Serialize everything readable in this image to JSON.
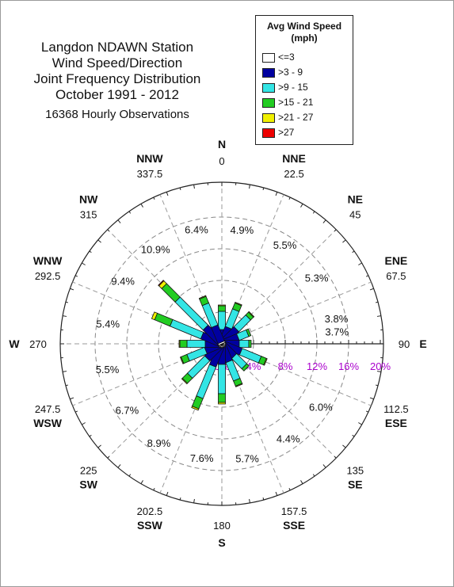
{
  "title": {
    "lines": [
      "Langdon NDAWN Station",
      "Wind Speed/Direction",
      "Joint Frequency Distribution",
      "October 1991 - 2012"
    ],
    "observations": "16368 Hourly Observations"
  },
  "legend": {
    "title": "Avg Wind Speed (mph)",
    "items": [
      {
        "label": "<=3",
        "color": "#ffffff"
      },
      {
        "label": ">3 - 9",
        "color": "#0000a0"
      },
      {
        "label": ">9 - 15",
        "color": "#33e5e5"
      },
      {
        "label": ">15 - 21",
        "color": "#22cc22"
      },
      {
        "label": ">21 - 27",
        "color": "#f0f000"
      },
      {
        "label": ">27",
        "color": "#ee0000"
      }
    ]
  },
  "chart_data": {
    "type": "polar-bar",
    "title": "Langdon NDAWN Station Wind Speed/Direction Joint Frequency Distribution October 1991 - 2012",
    "radial_axis": {
      "ticks": [
        "0%",
        "4%",
        "8%",
        "12%",
        "16%",
        "20%"
      ],
      "max": 20,
      "tick_color": "#aa00cc"
    },
    "directions": [
      {
        "name": "N",
        "angle": "0",
        "label_pct": "4.9%",
        "values": [
          0.2,
          1.6,
          2.3,
          0.7,
          0.1,
          0
        ]
      },
      {
        "name": "NNE",
        "angle": "22.5",
        "label_pct": "5.5%",
        "values": [
          0.2,
          2.0,
          2.4,
          0.8,
          0.1,
          0
        ]
      },
      {
        "name": "NE",
        "angle": "45",
        "label_pct": "5.3%",
        "values": [
          0.2,
          2.4,
          2.1,
          0.5,
          0.1,
          0
        ]
      },
      {
        "name": "ENE",
        "angle": "67.5",
        "label_pct": "3.8%",
        "values": [
          0.2,
          2.0,
          1.3,
          0.3,
          0,
          0
        ]
      },
      {
        "name": "E",
        "angle": "90",
        "label_pct": "3.7%",
        "values": [
          0.2,
          2.0,
          1.2,
          0.3,
          0,
          0
        ]
      },
      {
        "name": "ESE",
        "angle": "112.5",
        "label_pct": "6.0%",
        "values": [
          0.2,
          2.4,
          2.6,
          0.7,
          0.1,
          0
        ]
      },
      {
        "name": "SE",
        "angle": "135",
        "label_pct": "4.4%",
        "values": [
          0.2,
          2.0,
          1.8,
          0.4,
          0,
          0
        ]
      },
      {
        "name": "SSE",
        "angle": "157.5",
        "label_pct": "5.7%",
        "values": [
          0.2,
          2.2,
          2.5,
          0.7,
          0.1,
          0
        ]
      },
      {
        "name": "S",
        "angle": "180",
        "label_pct": "7.6%",
        "values": [
          0.2,
          2.4,
          3.7,
          1.1,
          0.2,
          0
        ]
      },
      {
        "name": "SSW",
        "angle": "202.5",
        "label_pct": "8.9%",
        "values": [
          0.2,
          2.8,
          4.3,
          1.4,
          0.2,
          0
        ]
      },
      {
        "name": "SW",
        "angle": "225",
        "label_pct": "6.7%",
        "values": [
          0.2,
          2.4,
          3.1,
          0.9,
          0.1,
          0
        ]
      },
      {
        "name": "WSW",
        "angle": "247.5",
        "label_pct": "5.5%",
        "values": [
          0.2,
          2.0,
          2.4,
          0.8,
          0.1,
          0
        ]
      },
      {
        "name": "W",
        "angle": "270",
        "label_pct": "5.4%",
        "values": [
          0.2,
          1.9,
          2.3,
          0.9,
          0.1,
          0
        ]
      },
      {
        "name": "WNW",
        "angle": "292.5",
        "label_pct": "9.4%",
        "values": [
          0.2,
          2.5,
          4.2,
          2.1,
          0.4,
          0
        ]
      },
      {
        "name": "NW",
        "angle": "315",
        "label_pct": "10.9%",
        "values": [
          0.2,
          2.7,
          5.0,
          2.4,
          0.5,
          0.1
        ]
      },
      {
        "name": "NNW",
        "angle": "337.5",
        "label_pct": "6.4%",
        "values": [
          0.2,
          2.2,
          3.0,
          0.9,
          0.1,
          0
        ]
      }
    ]
  }
}
